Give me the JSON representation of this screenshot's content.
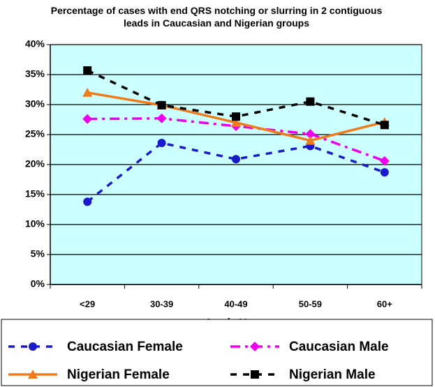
{
  "chart_data": {
    "type": "line",
    "title": "Percentage of cases with end QRS notching or slurring in 2 contiguous leads in Caucasian and Nigerian groups",
    "x_label": "Age in Years",
    "categories": [
      "<29",
      "30-39",
      "40-49",
      "50-59",
      "60+"
    ],
    "series": [
      {
        "name": "Caucasian Female",
        "color": "#1a1acc",
        "marker": "circle",
        "dash": "dashed",
        "values": [
          13.8,
          23.6,
          20.9,
          23.1,
          18.7
        ]
      },
      {
        "name": "Caucasian Male",
        "color": "#ee00ee",
        "marker": "diamond",
        "dash": "dashdot",
        "values": [
          27.6,
          27.7,
          26.4,
          25.1,
          20.6
        ]
      },
      {
        "name": "Nigerian Female",
        "color": "#f07b1b",
        "marker": "triangle",
        "dash": "solid",
        "values": [
          32,
          29.9,
          27,
          24,
          27.1
        ]
      },
      {
        "name": "Nigerian Male",
        "color": "#000000",
        "marker": "square",
        "dash": "dashed",
        "values": [
          35.7,
          29.9,
          28,
          30.5,
          26.6
        ]
      }
    ],
    "ylim": [
      0,
      40
    ],
    "yticks": [
      {
        "value": 0,
        "label": "0%"
      },
      {
        "value": 5,
        "label": "5%"
      },
      {
        "value": 10,
        "label": "10%"
      },
      {
        "value": 15,
        "label": "15%"
      },
      {
        "value": 20,
        "label": "20%"
      },
      {
        "value": 25,
        "label": "25%"
      },
      {
        "value": 30,
        "label": "30%"
      },
      {
        "value": 35,
        "label": "35%"
      },
      {
        "value": 40,
        "label": "40%"
      }
    ],
    "grid": true,
    "plot_background": "#ccffff",
    "legend": "bottom"
  }
}
